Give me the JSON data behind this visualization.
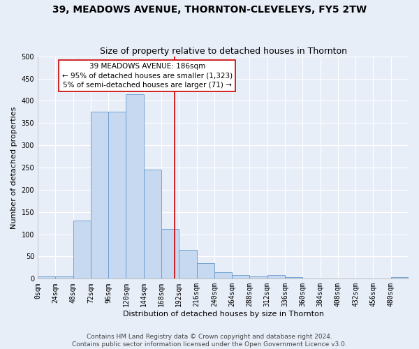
{
  "title": "39, MEADOWS AVENUE, THORNTON-CLEVELEYS, FY5 2TW",
  "subtitle": "Size of property relative to detached houses in Thornton",
  "xlabel": "Distribution of detached houses by size in Thornton",
  "ylabel": "Number of detached properties",
  "bin_edges": [
    0,
    24,
    48,
    72,
    96,
    120,
    144,
    168,
    192,
    216,
    240,
    264,
    288,
    312,
    336,
    360,
    384,
    408,
    432,
    456,
    480,
    504
  ],
  "bar_heights": [
    5,
    5,
    130,
    375,
    375,
    415,
    245,
    112,
    65,
    35,
    15,
    8,
    5,
    8,
    3,
    1,
    1,
    1,
    0,
    0,
    3
  ],
  "bar_color": "#c6d9f0",
  "bar_edge_color": "#6699cc",
  "property_size": 186,
  "annotation_text": "39 MEADOWS AVENUE: 186sqm\n← 95% of detached houses are smaller (1,323)\n5% of semi-detached houses are larger (71) →",
  "annotation_box_color": "#ffffff",
  "annotation_box_edge_color": "#cc0000",
  "vline_color": "#cc0000",
  "ylim": [
    0,
    500
  ],
  "xlim": [
    0,
    504
  ],
  "yticks": [
    0,
    50,
    100,
    150,
    200,
    250,
    300,
    350,
    400,
    450,
    500
  ],
  "footer_line1": "Contains HM Land Registry data © Crown copyright and database right 2024.",
  "footer_line2": "Contains public sector information licensed under the Open Government Licence v3.0.",
  "bg_color": "#e8eef8",
  "plot_bg_color": "#e8eef8",
  "title_fontsize": 10,
  "subtitle_fontsize": 9,
  "axis_label_fontsize": 8,
  "tick_fontsize": 7,
  "annotation_fontsize": 7.5,
  "footer_fontsize": 6.5,
  "grid_color": "#ffffff"
}
